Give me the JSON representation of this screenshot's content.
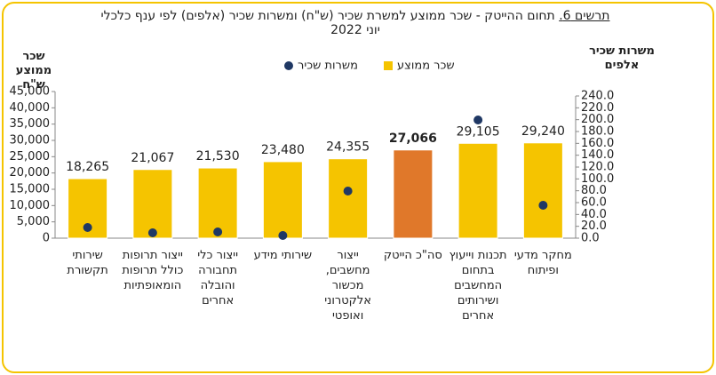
{
  "chart_data": {
    "type": "bar",
    "figure_label": "תרשים 6.",
    "title": "תחום ההייטק -  שכר ממוצע למשרת שכיר (ש\"ח) ומשרות שכיר (אלפים) לפי ענף כלכלי",
    "subtitle": "יוני 2022",
    "y_label": "שכר ממוצע ש\"ח",
    "y2_label": "משרות שכיר אלפים",
    "categories": [
      "שירותי תקשורת",
      "ייצור תרופות כולל תרופות הומאופתיות",
      "ייצור כלי תחבורה והובלה אחרים",
      "שירותי מידע",
      "ייצור מחשבים, מכשור אלקטרוני ואופטי",
      "סה\"כ הייטק",
      "תכנות וייעוץ בתחום המחשבים ושירותים אחרים",
      "מחקר מדעי ופיתוח"
    ],
    "series": [
      {
        "name": "שכר ממוצע",
        "type": "bar",
        "color": "#f5c400",
        "colors": [
          "#f5c400",
          "#f5c400",
          "#f5c400",
          "#f5c400",
          "#f5c400",
          "#e0782a",
          "#f5c400",
          "#f5c400"
        ],
        "values": [
          18265,
          21067,
          21530,
          23480,
          24355,
          27066,
          29105,
          29240
        ],
        "value_labels": [
          "18,265",
          "21,067",
          "21,530",
          "23,480",
          "24,355",
          "27,066",
          "29,105",
          "29,240"
        ]
      },
      {
        "name": "משרות שכיר",
        "type": "scatter",
        "axis": "y2",
        "color": "#1f3864",
        "values": [
          18,
          9,
          10.5,
          4.5,
          79.5,
          null,
          199.5,
          55.5
        ]
      }
    ],
    "ylim": [
      0,
      45000
    ],
    "yticks": [
      0,
      {
        "value": 5000,
        "label": "5,000"
      },
      {
        "value": 10000,
        "label": "10,000"
      },
      {
        "value": 15000,
        "label": "15,000"
      },
      {
        "value": 20000,
        "label": "20,000"
      },
      {
        "value": 25000,
        "label": "25,000"
      },
      {
        "value": 30000,
        "label": "30,000"
      },
      {
        "value": 35000,
        "label": "35,000"
      },
      {
        "value": 40000,
        "label": "40,000"
      },
      {
        "value": 45000,
        "label": "45,000"
      }
    ],
    "y2lim": [
      0,
      240
    ],
    "y2ticks": [
      {
        "value": 0,
        "label": "0.0"
      },
      {
        "value": 20,
        "label": "20.0"
      },
      {
        "value": 40,
        "label": "40.0"
      },
      {
        "value": 60,
        "label": "60.0"
      },
      {
        "value": 80,
        "label": "80.0"
      },
      {
        "value": 100,
        "label": "100.0"
      },
      {
        "value": 120,
        "label": "120.0"
      },
      {
        "value": 140,
        "label": "140.0"
      },
      {
        "value": 160,
        "label": "160.0"
      },
      {
        "value": 180,
        "label": "180.0"
      },
      {
        "value": 200,
        "label": "200.0"
      },
      {
        "value": 220,
        "label": "220.0"
      },
      {
        "value": 240,
        "label": "240.0"
      }
    ],
    "highlight_bold": 5
  }
}
